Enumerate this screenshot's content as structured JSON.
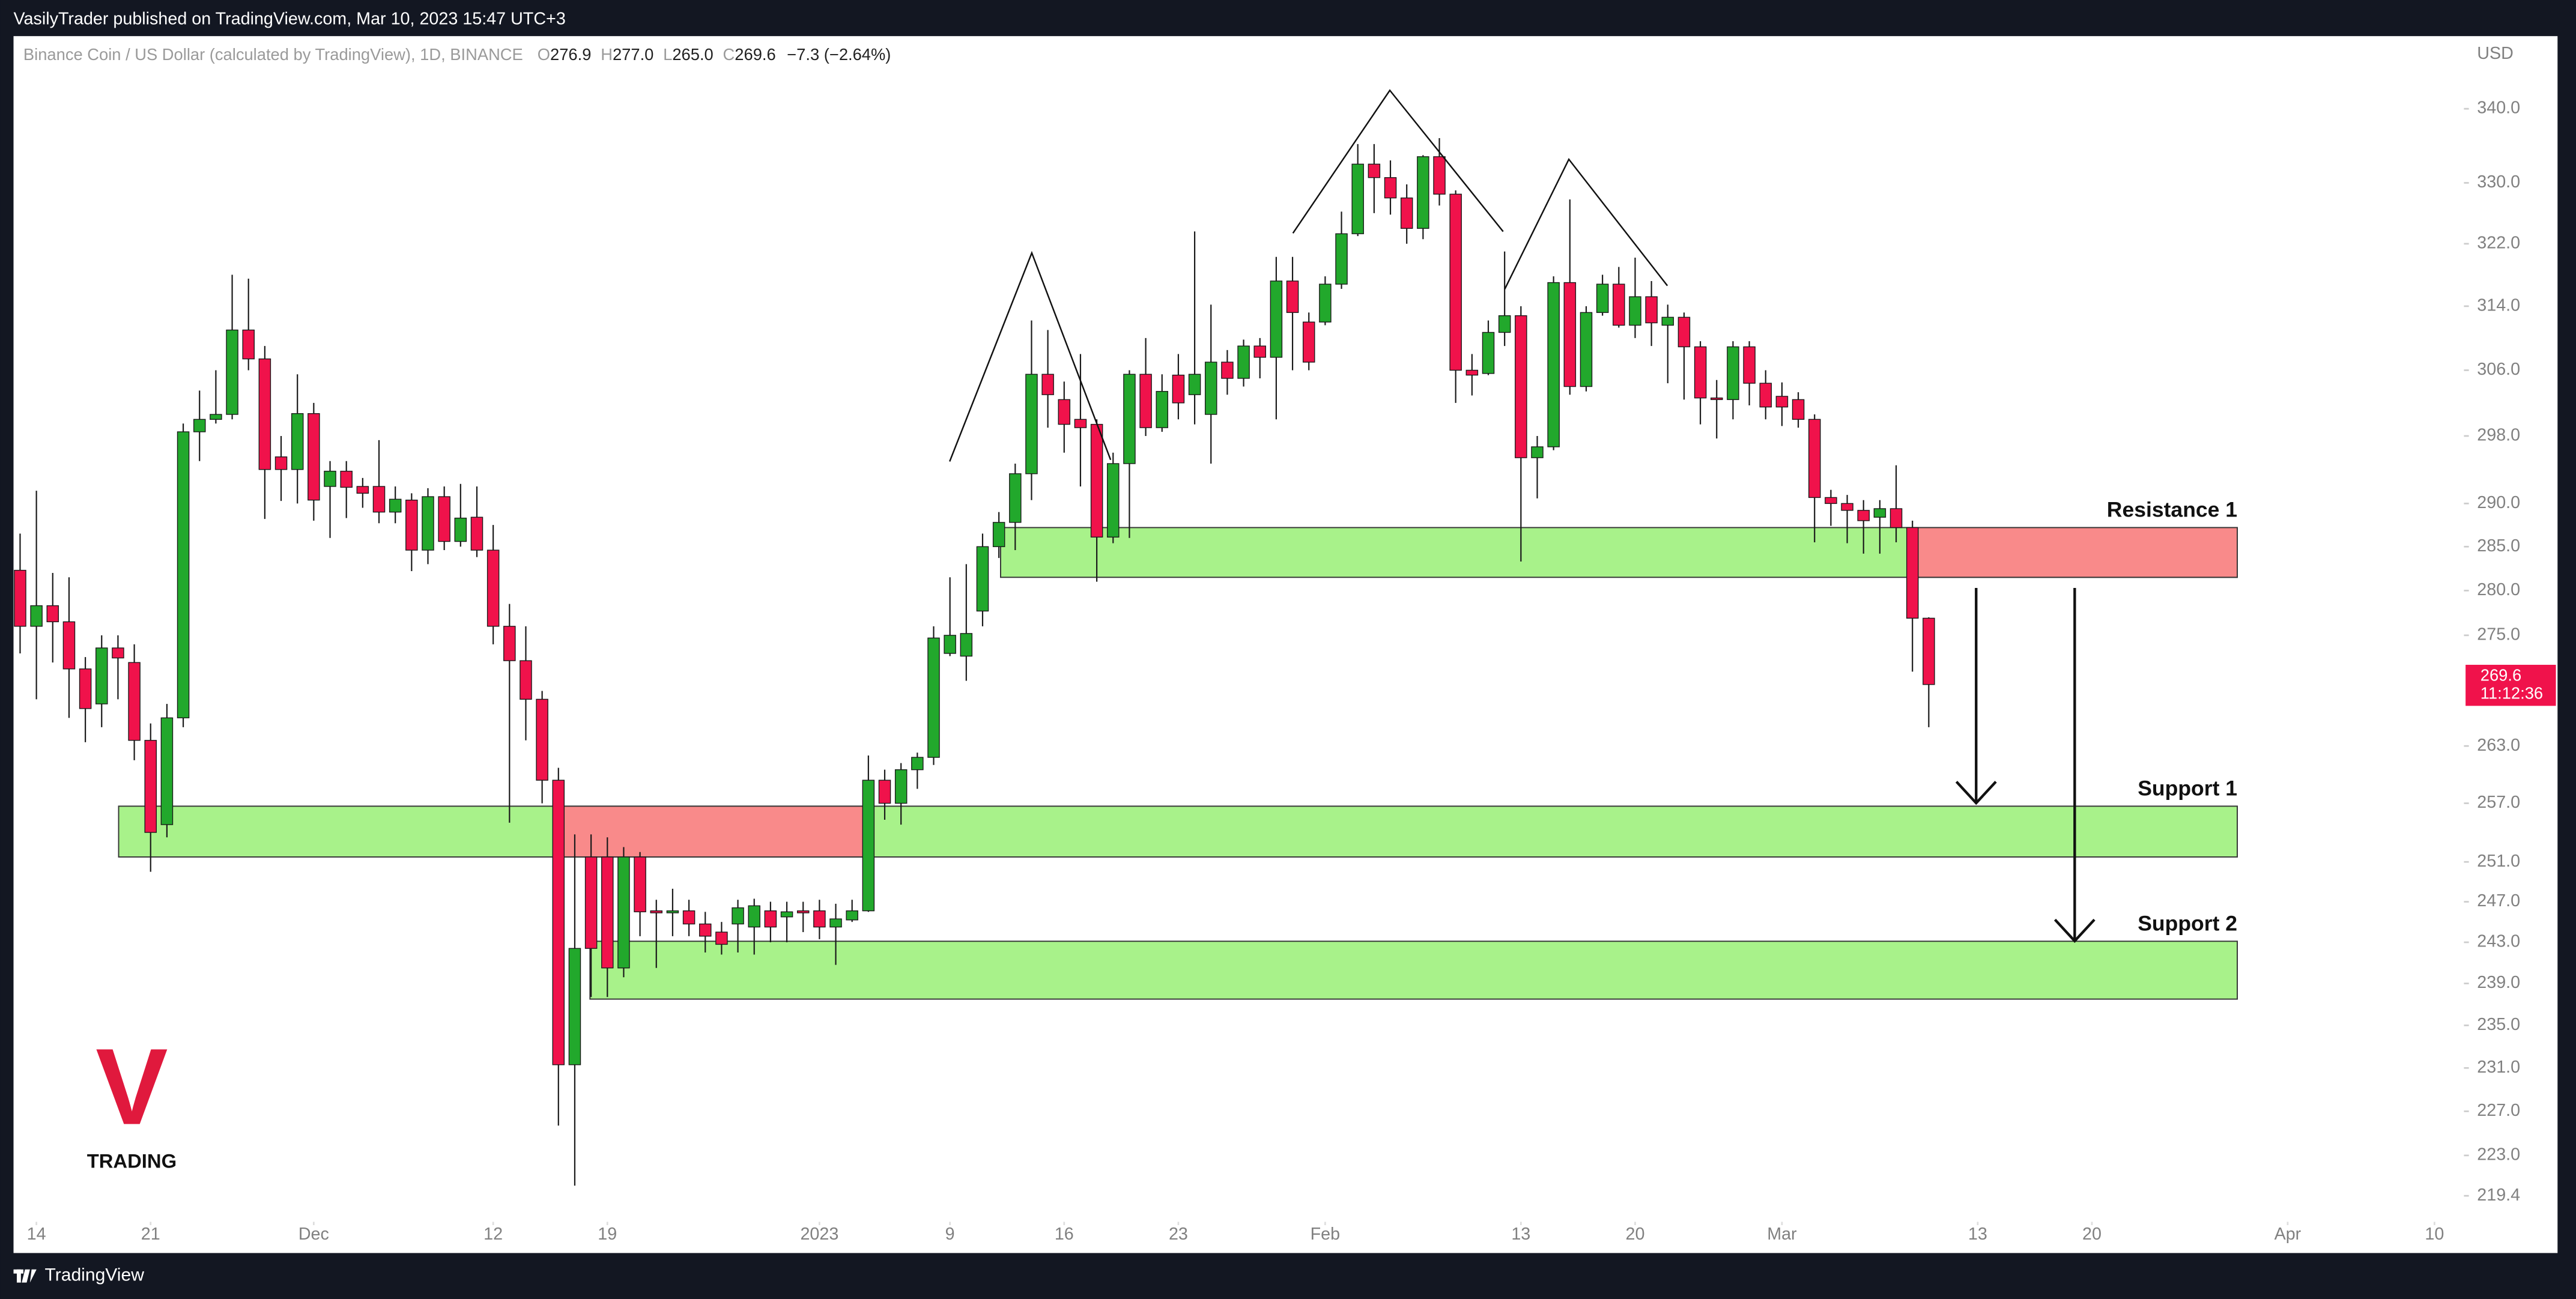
{
  "header": {
    "publisher": "VasilyTrader published on TradingView.com, Mar 10, 2023 15:47 UTC+3"
  },
  "footer": {
    "brand": "TradingView"
  },
  "chart_data": {
    "type": "candlestick",
    "symbol": "Binance Coin / US Dollar (calculated by TradingView), 1D, BINANCE",
    "legend_ohlc": [
      {
        "label": "O",
        "value": "276.9"
      },
      {
        "label": "H",
        "value": "277.0"
      },
      {
        "label": "L",
        "value": "265.0"
      },
      {
        "label": "C",
        "value": "269.6"
      }
    ],
    "change": "−7.3 (−2.64%)",
    "currency": "USD",
    "last_price": 269.6,
    "countdown": "11:12:36",
    "logo": {
      "mark": "V",
      "text": "TRADING"
    },
    "up_color": "#22a82c",
    "down_color": "#f0124b",
    "zone_color": "#a8f28a",
    "zone_broken_color": "#f98a8a",
    "log_scale": true,
    "xlim": [
      "2022-11-13",
      "2023-04-11"
    ],
    "ylim": [
      214.4,
      350.1
    ],
    "yticks": [
      {
        "value": 340,
        "label": "340.0"
      },
      {
        "value": 330,
        "label": "330.0"
      },
      {
        "value": 322,
        "label": "322.0"
      },
      {
        "value": 314,
        "label": "314.0"
      },
      {
        "value": 306,
        "label": "306.0"
      },
      {
        "value": 298,
        "label": "298.0"
      },
      {
        "value": 290,
        "label": "290.0"
      },
      {
        "value": 285,
        "label": "285.0"
      },
      {
        "value": 280,
        "label": "280.0"
      },
      {
        "value": 275,
        "label": "275.0"
      },
      {
        "value": 263,
        "label": "263.0"
      },
      {
        "value": 257,
        "label": "257.0"
      },
      {
        "value": 251,
        "label": "251.0"
      },
      {
        "value": 247,
        "label": "247.0"
      },
      {
        "value": 243,
        "label": "243.0"
      },
      {
        "value": 239,
        "label": "239.0"
      },
      {
        "value": 235,
        "label": "235.0"
      },
      {
        "value": 231,
        "label": "231.0"
      },
      {
        "value": 227,
        "label": "227.0"
      },
      {
        "value": 223,
        "label": "223.0"
      },
      219.4
    ],
    "xticks": [
      {
        "value": "2022-11-14",
        "label": "14"
      },
      {
        "value": "2022-11-21",
        "label": "21"
      },
      {
        "value": "2022-12-01",
        "label": "Dec"
      },
      {
        "value": "2022-12-12",
        "label": "12"
      },
      {
        "value": "2022-12-19",
        "label": "19"
      },
      {
        "value": "2023-01-01",
        "label": "2023"
      },
      {
        "value": "2023-01-09",
        "label": "9"
      },
      {
        "value": "2023-01-16",
        "label": "16"
      },
      {
        "value": "2023-01-23",
        "label": "23"
      },
      {
        "value": "2023-02-01",
        "label": "Feb"
      },
      {
        "value": "2023-02-13",
        "label": "13"
      },
      {
        "value": "2023-02-20",
        "label": "20"
      },
      {
        "value": "2023-03-01",
        "label": "Mar"
      },
      {
        "value": "2023-03-13",
        "label": "13"
      },
      {
        "value": "2023-03-20",
        "label": "20"
      },
      {
        "value": "2023-04-01",
        "label": "Apr"
      },
      {
        "value": "2023-04-10",
        "label": "10"
      }
    ],
    "zones": [
      {
        "label": "Resistance 1",
        "top": 287.2,
        "bottom": 281.5
      },
      {
        "label": "Support 1",
        "top": 256.7,
        "bottom": 251.5
      },
      {
        "label": "Support 2",
        "top": 243.1,
        "bottom": 237.5
      }
    ],
    "x": [
      "2022-11-13",
      "2022-11-14",
      "2022-11-15",
      "2022-11-16",
      "2022-11-17",
      "2022-11-18",
      "2022-11-19",
      "2022-11-20",
      "2022-11-21",
      "2022-11-22",
      "2022-11-23",
      "2022-11-24",
      "2022-11-25",
      "2022-11-26",
      "2022-11-27",
      "2022-11-28",
      "2022-11-29",
      "2022-11-30",
      "2022-12-01",
      "2022-12-02",
      "2022-12-03",
      "2022-12-04",
      "2022-12-05",
      "2022-12-06",
      "2022-12-07",
      "2022-12-08",
      "2022-12-09",
      "2022-12-10",
      "2022-12-11",
      "2022-12-12",
      "2022-12-13",
      "2022-12-14",
      "2022-12-15",
      "2022-12-16",
      "2022-12-17",
      "2022-12-18",
      "2022-12-19",
      "2022-12-20",
      "2022-12-21",
      "2022-12-22",
      "2022-12-23",
      "2022-12-24",
      "2022-12-25",
      "2022-12-26",
      "2022-12-27",
      "2022-12-28",
      "2022-12-29",
      "2022-12-30",
      "2022-12-31",
      "2023-01-01",
      "2023-01-02",
      "2023-01-03",
      "2023-01-04",
      "2023-01-05",
      "2023-01-06",
      "2023-01-07",
      "2023-01-08",
      "2023-01-09",
      "2023-01-10",
      "2023-01-11",
      "2023-01-12",
      "2023-01-13",
      "2023-01-14",
      "2023-01-15",
      "2023-01-16",
      "2023-01-17",
      "2023-01-18",
      "2023-01-19",
      "2023-01-20",
      "2023-01-21",
      "2023-01-22",
      "2023-01-23",
      "2023-01-24",
      "2023-01-25",
      "2023-01-26",
      "2023-01-27",
      "2023-01-28",
      "2023-01-29",
      "2023-01-30",
      "2023-01-31",
      "2023-02-01",
      "2023-02-02",
      "2023-02-03",
      "2023-02-04",
      "2023-02-05",
      "2023-02-06",
      "2023-02-07",
      "2023-02-08",
      "2023-02-09",
      "2023-02-10",
      "2023-02-11",
      "2023-02-12",
      "2023-02-13",
      "2023-02-14",
      "2023-02-15",
      "2023-02-16",
      "2023-02-17",
      "2023-02-18",
      "2023-02-19",
      "2023-02-20",
      "2023-02-21",
      "2023-02-22",
      "2023-02-23",
      "2023-02-24",
      "2023-02-25",
      "2023-02-26",
      "2023-02-27",
      "2023-02-28",
      "2023-03-01",
      "2023-03-02",
      "2023-03-03",
      "2023-03-04",
      "2023-03-05",
      "2023-03-06",
      "2023-03-07",
      "2023-03-08",
      "2023-03-09",
      "2023-03-10"
    ],
    "open": [
      282.3,
      276,
      278.3,
      276.5,
      271.3,
      267.5,
      273.6,
      272,
      263.6,
      254.8,
      266,
      298.5,
      300,
      300.6,
      311,
      307.4,
      295.5,
      294,
      300.7,
      292,
      293.8,
      292,
      292,
      289,
      290.4,
      284.6,
      290.8,
      285.6,
      288.4,
      284.6,
      276,
      272.2,
      268,
      259.4,
      231.3,
      251.5,
      251.5,
      240.5,
      251.5,
      246.1,
      245.9,
      246.1,
      244.8,
      244,
      244.8,
      244.5,
      246.1,
      245.5,
      246.1,
      246.1,
      244.5,
      245.2,
      246.1,
      259.4,
      257,
      260.5,
      261.8,
      273,
      272.7,
      277.7,
      285,
      287.8,
      293.5,
      305.5,
      302.4,
      300,
      299.4,
      286.1,
      294.7,
      305.5,
      299,
      305.4,
      303,
      300.6,
      307,
      305,
      309,
      307.6,
      317.2,
      312,
      312,
      316.8,
      323.3,
      332.5,
      330.7,
      328,
      324,
      333.5,
      328.5,
      306,
      305.6,
      310.7,
      312.8,
      295.4,
      296.7,
      317,
      304,
      313.2,
      316.8,
      311.6,
      315.2,
      311.6,
      312.6,
      308.9,
      302.6,
      302.4,
      308.9,
      304.4,
      302.8,
      302.4,
      300,
      290.7,
      290,
      289.2,
      288.4,
      289.4,
      287.2,
      276.9
    ],
    "high": [
      286.5,
      291.5,
      282,
      281.5,
      272.6,
      275,
      275,
      274,
      265.4,
      267.5,
      299.5,
      303.5,
      306,
      318,
      317.5,
      309,
      298,
      305.5,
      302,
      295,
      295,
      293,
      297.5,
      292,
      291.2,
      291.8,
      292,
      292.3,
      292,
      287.5,
      278.5,
      276,
      268.9,
      260.7,
      253.8,
      253.8,
      253.5,
      252.5,
      252,
      247.2,
      248.3,
      247.2,
      246,
      245,
      247.2,
      247.3,
      247,
      247,
      247,
      247.2,
      246.8,
      247.2,
      262,
      260.5,
      261.2,
      262.3,
      276,
      281.5,
      283,
      286.5,
      289,
      294.7,
      312.2,
      311,
      304.6,
      308,
      300,
      296,
      306,
      310,
      305.5,
      308,
      323.6,
      314.2,
      308.5,
      309.8,
      310,
      320.3,
      320.3,
      313.2,
      317.8,
      326.2,
      335.2,
      335.2,
      333,
      329.8,
      333.7,
      336,
      329,
      308,
      312.2,
      321,
      314,
      298,
      317.8,
      327.8,
      314,
      318,
      319,
      320.2,
      317.2,
      314.2,
      313.2,
      309.6,
      304.8,
      309.6,
      309.6,
      306,
      304.5,
      303.3,
      300.6,
      291.6,
      291,
      290.4,
      290.4,
      294.5,
      288,
      277
    ],
    "low": [
      273,
      268,
      272,
      266,
      263.4,
      265,
      268,
      261.5,
      250,
      253.5,
      265,
      295,
      299.5,
      300,
      306,
      288.2,
      290.3,
      290,
      288,
      286,
      288.3,
      289.5,
      287.7,
      287.7,
      282.2,
      283,
      284.6,
      285,
      283.8,
      274,
      255,
      263.6,
      257,
      225.7,
      220.3,
      237.7,
      237.7,
      239.6,
      243.6,
      240.5,
      243.6,
      243.6,
      242,
      241.8,
      242,
      241.8,
      243,
      243,
      244,
      243.3,
      240.8,
      245,
      246,
      255.3,
      254.8,
      258.5,
      261,
      272.7,
      270,
      276,
      283.7,
      284.6,
      290.4,
      299,
      296,
      292,
      281,
      285.4,
      286,
      298,
      298.5,
      300,
      299.4,
      294.7,
      303,
      304,
      305,
      300,
      306,
      306,
      311.6,
      316.2,
      323,
      326,
      325.8,
      322,
      322.6,
      327,
      302,
      302.9,
      305.4,
      309,
      283.3,
      290.6,
      296.3,
      303,
      303.4,
      312.8,
      311.3,
      310,
      309,
      304.4,
      302.4,
      299.4,
      297.7,
      300,
      301.7,
      300,
      299.2,
      299,
      285.5,
      287.4,
      285.4,
      284.2,
      284.2,
      285.5,
      271,
      265
    ],
    "close": [
      276,
      278.3,
      276.5,
      271.3,
      267,
      273.6,
      272.5,
      263.6,
      254,
      266,
      298.5,
      300,
      300.6,
      311,
      307.4,
      294,
      294,
      300.7,
      290.4,
      293.8,
      291.9,
      291.2,
      289,
      290.5,
      284.6,
      290.8,
      285.6,
      288.3,
      284.6,
      276,
      272.2,
      268,
      259.4,
      231.3,
      242.4,
      242.4,
      240.5,
      251.5,
      246,
      245.9,
      246.1,
      244.8,
      243.6,
      242.8,
      246.4,
      246.6,
      244.5,
      246,
      245.9,
      244.5,
      245.3,
      246.1,
      259.4,
      257,
      260.5,
      261.8,
      274.7,
      275,
      275.2,
      285,
      287.8,
      293.5,
      305.5,
      303,
      299.4,
      299,
      286.1,
      294.7,
      305.5,
      299,
      303.4,
      302,
      305.5,
      307,
      305,
      309,
      307.6,
      317.2,
      313.2,
      307,
      316.8,
      323.3,
      332.5,
      330.7,
      328,
      324,
      333.5,
      328.5,
      306,
      305.4,
      310.7,
      312.8,
      295.4,
      296.7,
      317,
      304,
      313.2,
      316.8,
      311.6,
      315.2,
      311.9,
      312.6,
      308.9,
      302.6,
      302.4,
      308.9,
      304.4,
      301.5,
      301.5,
      300,
      290.7,
      290,
      289.2,
      288,
      289.4,
      287.2,
      276.9,
      269.6
    ]
  }
}
